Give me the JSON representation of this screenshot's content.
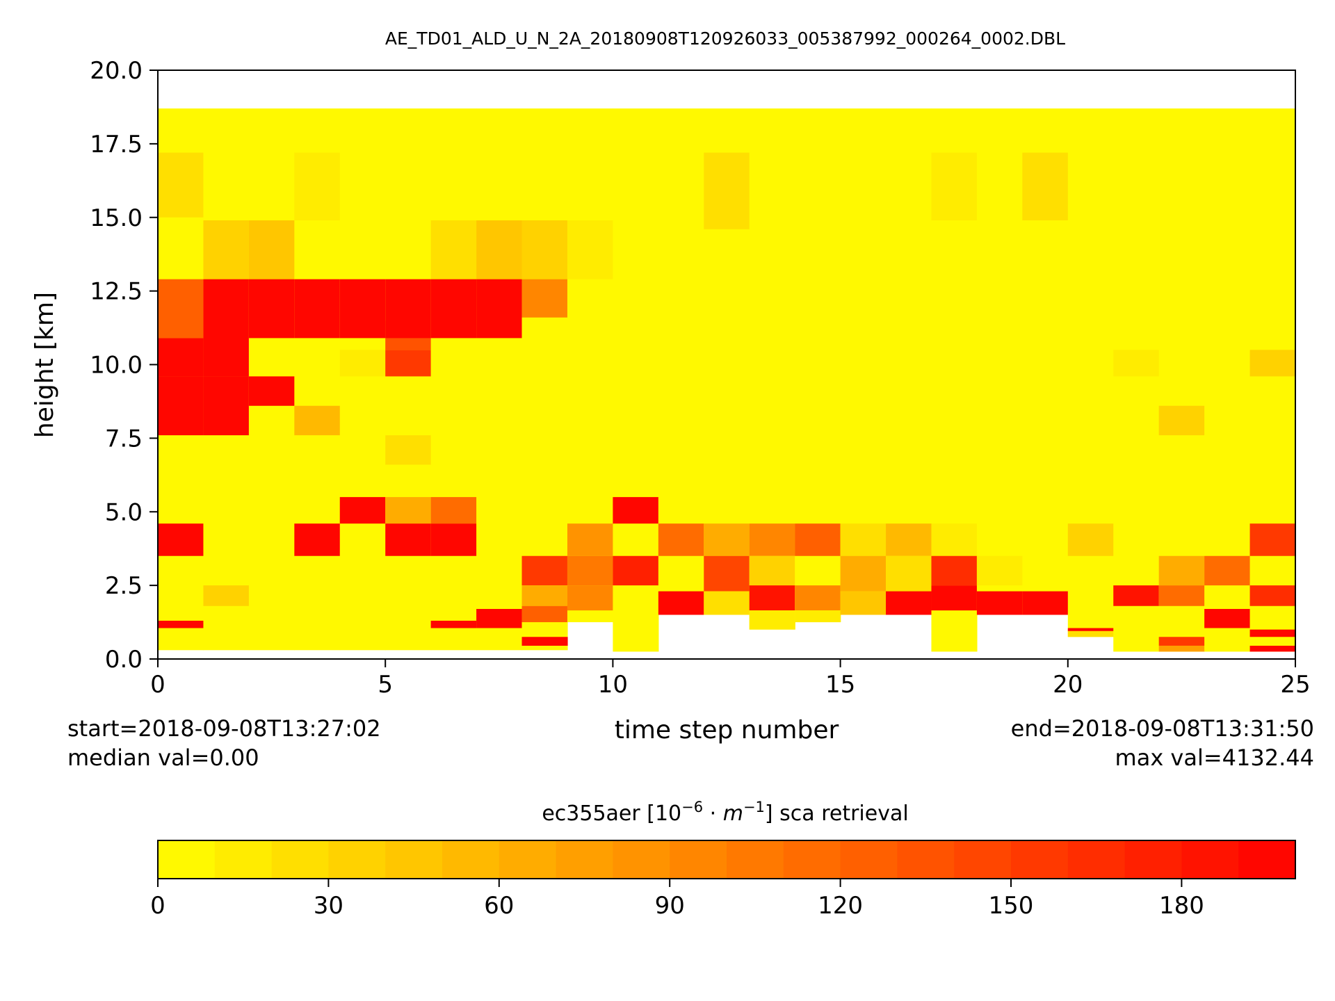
{
  "chart_data": {
    "type": "heatmap",
    "title": "AE_TD01_ALD_U_N_2A_20180908T120926033_005387992_000264_0002.DBL",
    "xlabel": "time step number",
    "ylabel": "height [km]",
    "xlim": [
      0,
      25
    ],
    "ylim": [
      0,
      20
    ],
    "xticks": [
      "0",
      "5",
      "10",
      "15",
      "20",
      "25"
    ],
    "yticks": [
      "0.0",
      "2.5",
      "5.0",
      "7.5",
      "10.0",
      "12.5",
      "15.0",
      "17.5",
      "20.0"
    ],
    "annotations": {
      "start": "start=2018-09-08T13:27:02",
      "median": "median val=0.00",
      "end": "end=2018-09-08T13:31:50",
      "max": "max val=4132.44"
    },
    "colorbar": {
      "label_prefix": "ec355aer [10",
      "label_exp1": "−6",
      "label_mid": " · ",
      "label_m": "m",
      "label_exp2": "−1",
      "label_suffix": "] sca retrieval",
      "ticks": [
        "0",
        "30",
        "60",
        "90",
        "120",
        "150",
        "180"
      ],
      "tick_values": [
        0,
        30,
        60,
        90,
        120,
        150,
        180
      ],
      "range": [
        0,
        200
      ],
      "levels": 20,
      "colormap": "autumn_r",
      "low_color": "#ffff00",
      "high_color": "#ff0000"
    },
    "background_value": 5,
    "default_top_km": 18.7,
    "columns": [
      {
        "top": 18.7,
        "bottom": 0.3,
        "cells": [
          [
            15,
            17.2,
            20
          ],
          [
            10.9,
            12.9,
            125
          ],
          [
            9.6,
            10.9,
            200
          ],
          [
            7.6,
            9.6,
            200
          ],
          [
            3.5,
            4.6,
            200
          ],
          [
            1.05,
            1.3,
            200
          ]
        ]
      },
      {
        "top": 18.7,
        "bottom": 0.3,
        "cells": [
          [
            12.9,
            14.9,
            30
          ],
          [
            9.6,
            12.9,
            200
          ],
          [
            7.6,
            9.6,
            200
          ],
          [
            1.8,
            2.5,
            35
          ]
        ]
      },
      {
        "top": 18.7,
        "bottom": 0.3,
        "cells": [
          [
            12.9,
            14.9,
            40
          ],
          [
            10.9,
            12.9,
            200
          ],
          [
            8.6,
            9.6,
            200
          ]
        ]
      },
      {
        "top": 18.7,
        "bottom": 0.3,
        "cells": [
          [
            14.9,
            17.2,
            10
          ],
          [
            10.9,
            12.9,
            200
          ],
          [
            7.6,
            8.6,
            50
          ],
          [
            3.5,
            4.6,
            200
          ]
        ]
      },
      {
        "top": 18.7,
        "bottom": 0.3,
        "cells": [
          [
            9.6,
            10.5,
            10
          ],
          [
            10.9,
            12.9,
            200
          ],
          [
            4.6,
            5.5,
            200
          ]
        ]
      },
      {
        "top": 18.7,
        "bottom": 0.3,
        "cells": [
          [
            10.5,
            11.5,
            130
          ],
          [
            9.6,
            10.5,
            150
          ],
          [
            10.9,
            12.9,
            200
          ],
          [
            6.6,
            7.6,
            20
          ],
          [
            4.6,
            5.5,
            65
          ],
          [
            3.5,
            4.6,
            200
          ]
        ]
      },
      {
        "top": 18.7,
        "bottom": 0.3,
        "cells": [
          [
            12.9,
            14.9,
            25
          ],
          [
            10.9,
            12.9,
            200
          ],
          [
            4.6,
            5.5,
            115
          ],
          [
            3.5,
            4.6,
            200
          ],
          [
            1.05,
            1.3,
            200
          ]
        ]
      },
      {
        "top": 18.7,
        "bottom": 0.3,
        "cells": [
          [
            12.9,
            14.9,
            40
          ],
          [
            10.9,
            12.9,
            200
          ],
          [
            1.05,
            1.7,
            200
          ]
        ]
      },
      {
        "top": 18.7,
        "bottom": 0.3,
        "cells": [
          [
            12.9,
            14.9,
            30
          ],
          [
            11.6,
            12.9,
            90
          ],
          [
            2.5,
            3.5,
            150
          ],
          [
            1.8,
            2.5,
            60
          ],
          [
            1.25,
            1.8,
            120
          ],
          [
            0.45,
            0.75,
            200
          ]
        ]
      },
      {
        "top": 18.7,
        "bottom": 1.25,
        "cells": [
          [
            12.9,
            14.9,
            10
          ],
          [
            3.5,
            4.6,
            80
          ],
          [
            2.5,
            3.5,
            105
          ],
          [
            1.65,
            2.5,
            90
          ]
        ]
      },
      {
        "top": 18.7,
        "bottom": 0.25,
        "cells": [
          [
            4.6,
            5.5,
            200
          ],
          [
            2.5,
            3.5,
            170
          ]
        ]
      },
      {
        "top": 18.7,
        "bottom": 1.5,
        "cells": [
          [
            3.5,
            4.6,
            110
          ],
          [
            1.5,
            2.3,
            190
          ]
        ]
      },
      {
        "top": 18.7,
        "bottom": 1.5,
        "cells": [
          [
            14.6,
            17.2,
            20
          ],
          [
            3.5,
            4.6,
            60
          ],
          [
            2.3,
            3.5,
            140
          ],
          [
            1.5,
            2.3,
            20
          ]
        ]
      },
      {
        "top": 18.7,
        "bottom": 1.0,
        "cells": [
          [
            3.5,
            4.6,
            90
          ],
          [
            2.5,
            3.5,
            30
          ],
          [
            1.65,
            2.5,
            185
          ],
          [
            1.0,
            1.65,
            10
          ]
        ]
      },
      {
        "top": 18.7,
        "bottom": 1.25,
        "cells": [
          [
            3.5,
            4.6,
            120
          ],
          [
            1.65,
            2.5,
            90
          ],
          [
            1.25,
            1.65,
            15
          ]
        ]
      },
      {
        "top": 18.7,
        "bottom": 1.5,
        "cells": [
          [
            3.5,
            4.6,
            20
          ],
          [
            2.3,
            3.5,
            60
          ],
          [
            1.5,
            2.3,
            45
          ]
        ]
      },
      {
        "top": 18.7,
        "bottom": 1.5,
        "cells": [
          [
            3.5,
            4.6,
            50
          ],
          [
            2.3,
            3.5,
            25
          ],
          [
            1.5,
            2.3,
            200
          ]
        ]
      },
      {
        "top": 18.7,
        "bottom": 0.25,
        "cells": [
          [
            14.9,
            17.2,
            10
          ],
          [
            3.5,
            4.6,
            15
          ],
          [
            2.5,
            3.5,
            160
          ],
          [
            1.65,
            2.5,
            190
          ]
        ]
      },
      {
        "top": 18.7,
        "bottom": 1.5,
        "cells": [
          [
            2.5,
            3.5,
            10
          ],
          [
            1.5,
            2.3,
            200
          ]
        ]
      },
      {
        "top": 18.7,
        "bottom": 1.5,
        "cells": [
          [
            14.9,
            17.2,
            20
          ],
          [
            1.5,
            2.3,
            200
          ]
        ]
      },
      {
        "top": 18.7,
        "bottom": 0.75,
        "cells": [
          [
            3.5,
            4.6,
            35
          ],
          [
            0.75,
            1.0,
            20
          ],
          [
            0.95,
            1.05,
            200
          ]
        ]
      },
      {
        "top": 18.7,
        "bottom": 0.25,
        "cells": [
          [
            9.6,
            10.5,
            10
          ],
          [
            1.8,
            2.5,
            180
          ]
        ]
      },
      {
        "top": 18.7,
        "bottom": 0.25,
        "cells": [
          [
            7.6,
            8.6,
            30
          ],
          [
            2.5,
            3.5,
            60
          ],
          [
            1.8,
            2.5,
            115
          ],
          [
            0.45,
            0.75,
            150
          ],
          [
            0.25,
            0.45,
            70
          ]
        ]
      },
      {
        "top": 18.7,
        "bottom": 0.25,
        "cells": [
          [
            2.5,
            3.5,
            110
          ],
          [
            1.05,
            1.7,
            195
          ]
        ]
      },
      {
        "top": 18.7,
        "bottom": 0.25,
        "cells": [
          [
            9.6,
            10.5,
            30
          ],
          [
            3.5,
            4.6,
            150
          ],
          [
            1.8,
            2.5,
            165
          ],
          [
            0.75,
            1.0,
            200
          ],
          [
            0.25,
            0.45,
            200
          ]
        ]
      }
    ]
  }
}
